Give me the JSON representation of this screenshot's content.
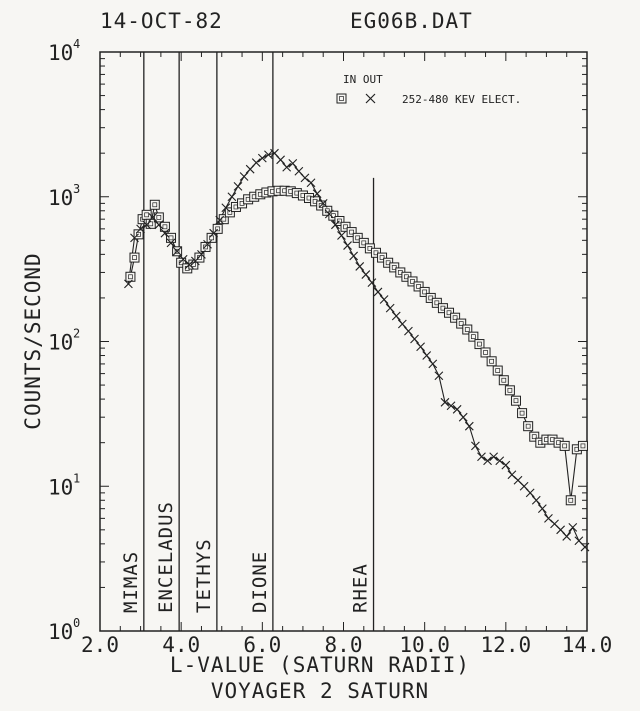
{
  "header": {
    "date": "14-OCT-82",
    "filename": "EG06B.DAT"
  },
  "chart_data": {
    "type": "line",
    "xlabel": "L-VALUE (SATURN RADII)",
    "ylabel": "COUNTS/SECOND",
    "caption": "VOYAGER 2 SATURN",
    "xlim": [
      2.0,
      14.0
    ],
    "ylim": [
      1,
      10000
    ],
    "y_scale": "log",
    "x_ticks": [
      "2.0",
      "4.0",
      "6.0",
      "8.0",
      "10.0",
      "12.0",
      "14.0"
    ],
    "y_ticks": [
      {
        "base": "10",
        "exp": "0"
      },
      {
        "base": "10",
        "exp": "1"
      },
      {
        "base": "10",
        "exp": "2"
      },
      {
        "base": "10",
        "exp": "3"
      },
      {
        "base": "10",
        "exp": "4"
      }
    ],
    "legend": {
      "header": "IN OUT",
      "label": "252-480 KEV ELECT.",
      "in_marker": "square",
      "out_marker": "x"
    },
    "moons": [
      {
        "name": "MIMAS",
        "L": 3.08,
        "top": 10000
      },
      {
        "name": "ENCELADUS",
        "L": 3.95,
        "top": 10000
      },
      {
        "name": "TETHYS",
        "L": 4.88,
        "top": 10000
      },
      {
        "name": "DIONE",
        "L": 6.26,
        "top": 10000
      },
      {
        "name": "RHEA",
        "L": 8.74,
        "top": 1350
      }
    ],
    "series": [
      {
        "marker": "square",
        "x": [
          2.75,
          2.85,
          2.95,
          3.05,
          3.15,
          3.25,
          3.35,
          3.45,
          3.6,
          3.75,
          3.9,
          4.0,
          4.15,
          4.3,
          4.45,
          4.6,
          4.75,
          4.9,
          5.05,
          5.2,
          5.35,
          5.5,
          5.65,
          5.8,
          5.95,
          6.1,
          6.25,
          6.4,
          6.55,
          6.7,
          6.85,
          7.0,
          7.15,
          7.3,
          7.45,
          7.6,
          7.75,
          7.9,
          8.05,
          8.2,
          8.35,
          8.5,
          8.65,
          8.8,
          8.95,
          9.1,
          9.25,
          9.4,
          9.55,
          9.7,
          9.85,
          10.0,
          10.15,
          10.3,
          10.45,
          10.6,
          10.75,
          10.9,
          11.05,
          11.2,
          11.35,
          11.5,
          11.65,
          11.8,
          11.95,
          12.1,
          12.25,
          12.4,
          12.55,
          12.7,
          12.85,
          13.0,
          13.15,
          13.3,
          13.45,
          13.6,
          13.75,
          13.9
        ],
        "y": [
          280,
          380,
          550,
          700,
          750,
          650,
          880,
          720,
          620,
          520,
          420,
          350,
          320,
          340,
          380,
          450,
          520,
          600,
          700,
          780,
          850,
          900,
          960,
          1000,
          1040,
          1070,
          1090,
          1100,
          1100,
          1090,
          1060,
          1020,
          980,
          930,
          870,
          800,
          740,
          680,
          620,
          570,
          520,
          480,
          440,
          410,
          380,
          350,
          325,
          300,
          280,
          260,
          240,
          220,
          200,
          185,
          170,
          158,
          146,
          133,
          121,
          108,
          96,
          84,
          73,
          63,
          54,
          46,
          39,
          32,
          26,
          22,
          20,
          21,
          21,
          20,
          19,
          8,
          18,
          19
        ],
        "name": ""
      },
      {
        "marker": "x",
        "x": [
          2.7,
          2.85,
          3.0,
          3.15,
          3.3,
          3.45,
          3.6,
          3.75,
          3.9,
          4.05,
          4.2,
          4.35,
          4.5,
          4.65,
          4.8,
          4.95,
          5.1,
          5.25,
          5.4,
          5.55,
          5.7,
          5.85,
          6.0,
          6.15,
          6.3,
          6.45,
          6.6,
          6.75,
          6.9,
          7.05,
          7.2,
          7.35,
          7.5,
          7.65,
          7.8,
          7.95,
          8.1,
          8.25,
          8.4,
          8.55,
          8.7,
          8.85,
          9.0,
          9.15,
          9.3,
          9.45,
          9.6,
          9.75,
          9.9,
          10.05,
          10.2,
          10.35,
          10.5,
          10.65,
          10.8,
          10.95,
          11.1,
          11.25,
          11.4,
          11.55,
          11.7,
          11.85,
          12.0,
          12.15,
          12.3,
          12.45,
          12.6,
          12.75,
          12.9,
          13.05,
          13.2,
          13.35,
          13.5,
          13.65,
          13.8,
          13.95
        ],
        "y": [
          250,
          520,
          600,
          640,
          720,
          640,
          560,
          480,
          420,
          370,
          340,
          360,
          400,
          470,
          560,
          690,
          840,
          1000,
          1180,
          1380,
          1550,
          1720,
          1850,
          1950,
          2000,
          1800,
          1600,
          1700,
          1500,
          1350,
          1250,
          1050,
          900,
          760,
          640,
          540,
          460,
          390,
          330,
          290,
          255,
          220,
          195,
          170,
          150,
          132,
          118,
          104,
          92,
          80,
          70,
          58,
          38,
          36,
          34,
          30,
          26,
          19,
          16,
          15,
          16,
          15,
          14,
          12,
          11,
          10,
          9,
          8,
          7,
          6,
          5.5,
          5,
          4.5,
          5.2,
          4.2,
          3.8
        ],
        "name": ""
      }
    ]
  }
}
